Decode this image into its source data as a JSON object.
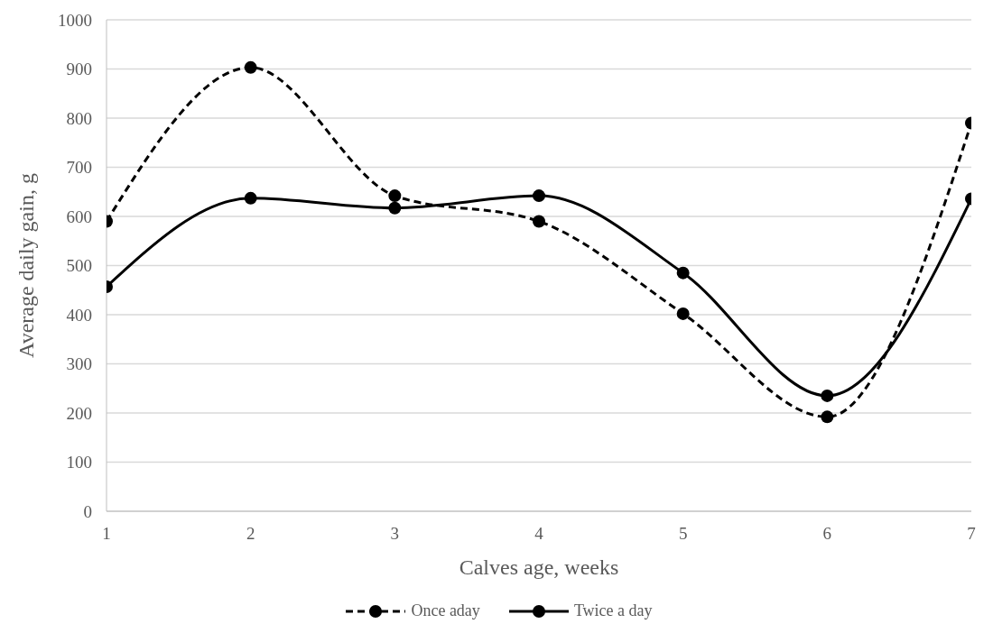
{
  "chart_data": {
    "type": "line",
    "xlabel": "Calves age, weeks",
    "ylabel": "Average daily gain, g",
    "x": [
      1,
      2,
      3,
      4,
      5,
      6,
      7
    ],
    "xlim": [
      1,
      7
    ],
    "xticks": [
      1,
      2,
      3,
      4,
      5,
      6,
      7
    ],
    "ylim": [
      0,
      1000
    ],
    "yticks": [
      0,
      100,
      200,
      300,
      400,
      500,
      600,
      700,
      800,
      900,
      1000
    ],
    "grid": "y",
    "legend": "bottom",
    "marker": "circle",
    "series": [
      {
        "name": "Once aday",
        "color": "#000000",
        "line_style": "dashed",
        "values": [
          590,
          903,
          642,
          590,
          402,
          192,
          790
        ]
      },
      {
        "name": "Twice a day",
        "color": "#000000",
        "line_style": "solid",
        "values": [
          457,
          637,
          617,
          642,
          485,
          235,
          636
        ]
      }
    ]
  }
}
